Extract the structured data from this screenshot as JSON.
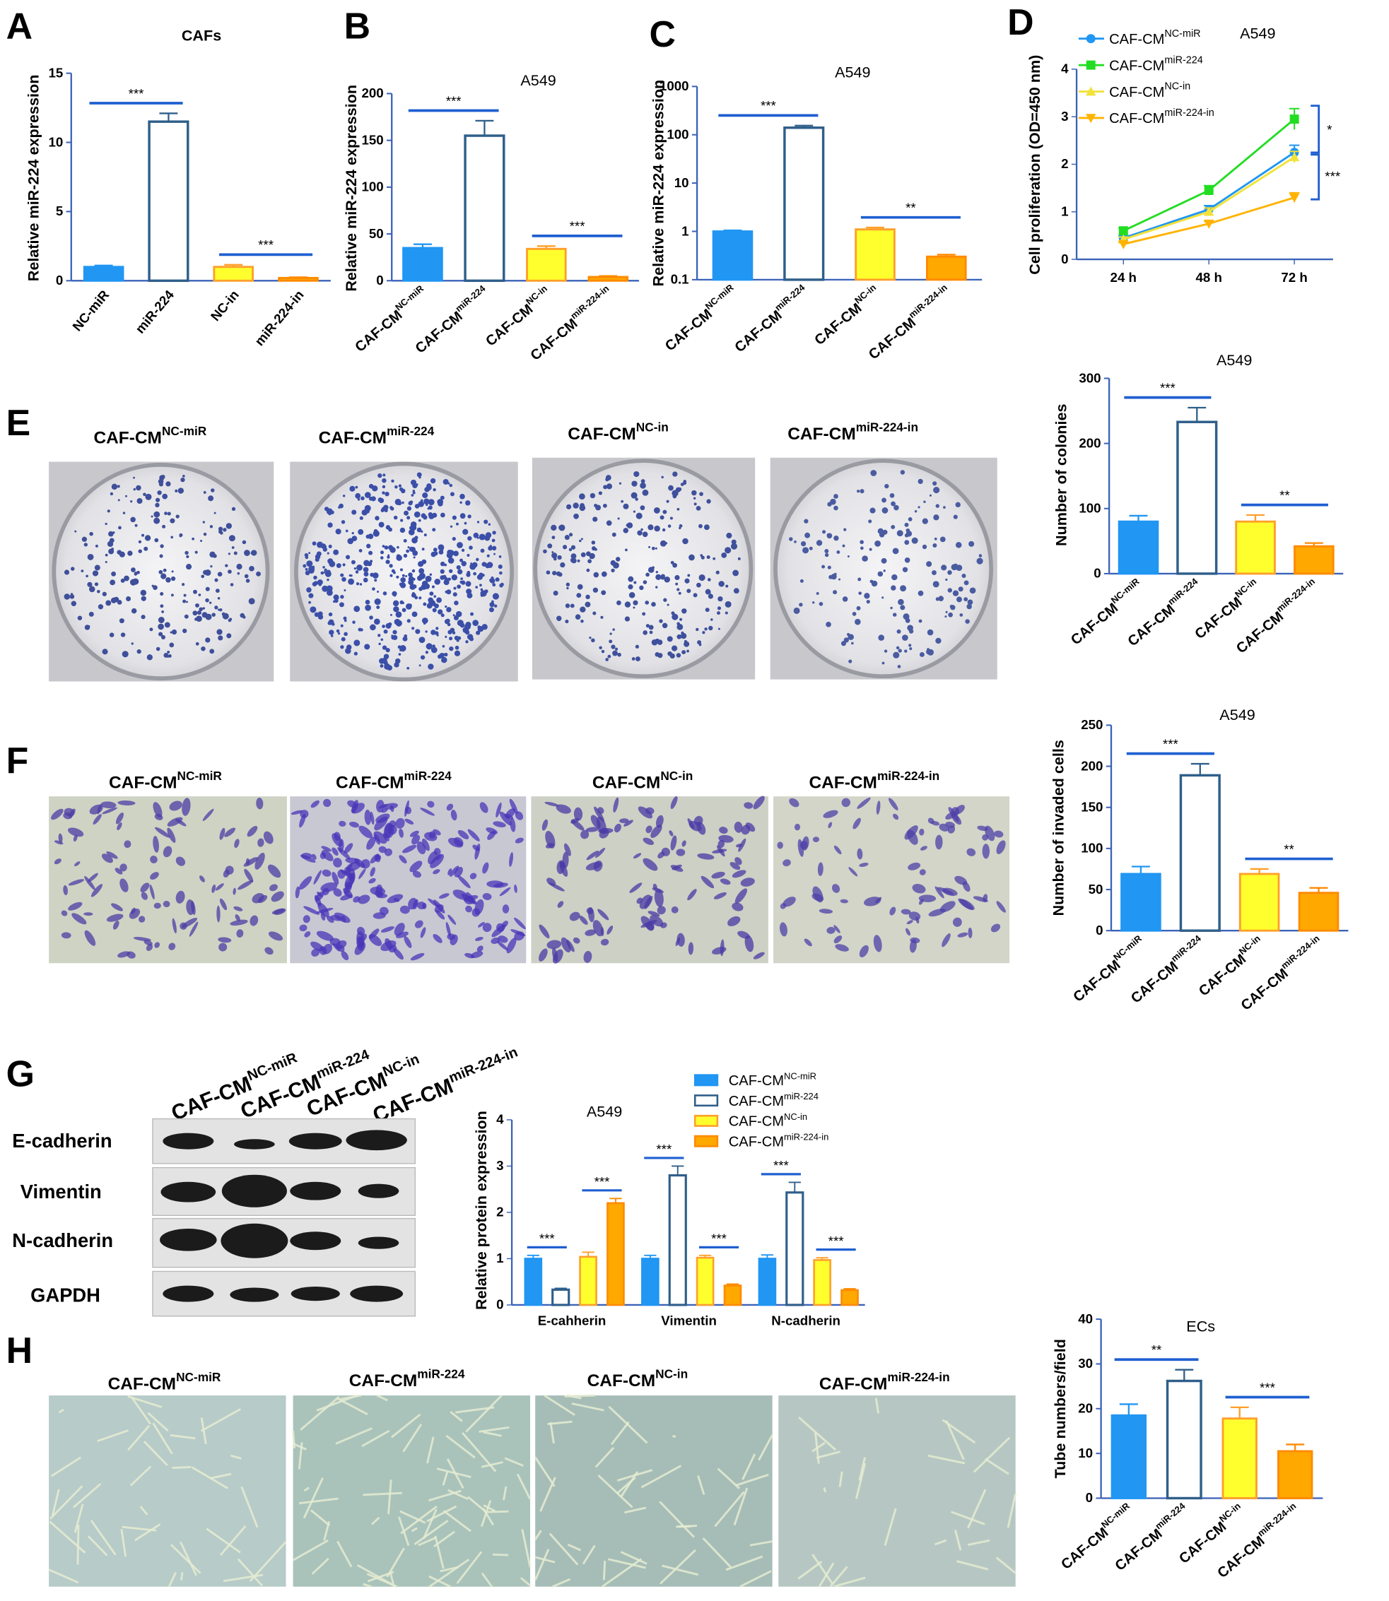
{
  "panels": [
    "A",
    "B",
    "C",
    "D",
    "E",
    "F",
    "G",
    "H"
  ],
  "colors": {
    "blue": "#2196f3",
    "white": "#ffffff",
    "yellow": "#ffff2e",
    "orange": "#ffa800",
    "blue_edge": "#2196f3",
    "white_edge": "#2f5f8a",
    "yellow_edge": "#ff9f2a",
    "orange_edge": "#ff8a00",
    "green": "#22dd22",
    "sig_line": "#1f5fd1"
  },
  "groups": {
    "short": [
      "NC-miR",
      "miR-224",
      "NC-in",
      "miR-224-in"
    ],
    "base": "CAF-CM",
    "sups": [
      "NC-miR",
      "miR-224",
      "NC-in",
      "miR-224-in"
    ]
  },
  "image_captions": {
    "E": [
      "CAF-CM",
      "NC-miR",
      "CAF-CM",
      "miR-224",
      "CAF-CM",
      "NC-in",
      "CAF-CM",
      "miR-224-in"
    ],
    "F": [
      "CAF-CM",
      "NC-miR",
      "CAF-CM",
      "miR-224",
      "CAF-CM",
      "NC-in",
      "CAF-CM",
      "miR-224-in"
    ],
    "H": [
      "CAF-CM",
      "NC-miR",
      "CAF-CM",
      "miR-224",
      "CAF-CM",
      "NC-in",
      "CAF-CM",
      "miR-224-in"
    ]
  },
  "western": {
    "lanes": [
      "CAF-CM",
      "NC-miR",
      "CAF-CM",
      "miR-224",
      "CAF-CM",
      "NC-in",
      "CAF-CM",
      "miR-224-in"
    ],
    "proteins": [
      "E-cadherin",
      "Vimentin",
      "N-cadherin",
      "GAPDH"
    ]
  },
  "chart_data": [
    {
      "id": "A",
      "type": "bar",
      "title": "CAFs",
      "ylabel": "Relative miR-224 expression",
      "ylim": [
        0,
        15
      ],
      "yticks": [
        0,
        5,
        10,
        15
      ],
      "categories": [
        "NC-miR",
        "miR-224",
        "NC-in",
        "miR-224-in"
      ],
      "values": [
        1.0,
        11.5,
        1.0,
        0.2
      ],
      "errors": [
        0.1,
        0.6,
        0.15,
        0.05
      ],
      "significance": [
        {
          "between": [
            0,
            1
          ],
          "label": "***"
        },
        {
          "between": [
            2,
            3
          ],
          "label": "***"
        }
      ]
    },
    {
      "id": "B",
      "type": "bar",
      "title": "A549",
      "ylabel": "Relative miR-224 expression",
      "ylim": [
        0,
        200
      ],
      "yticks": [
        0,
        50,
        100,
        150,
        200
      ],
      "categories": [
        "CAF-CM NC-miR",
        "CAF-CM miR-224",
        "CAF-CM NC-in",
        "CAF-CM miR-224-in"
      ],
      "values": [
        35,
        155,
        34,
        4
      ],
      "errors": [
        4,
        16,
        3,
        1
      ],
      "significance": [
        {
          "between": [
            0,
            1
          ],
          "label": "***"
        },
        {
          "between": [
            2,
            3
          ],
          "label": "***"
        }
      ]
    },
    {
      "id": "C",
      "type": "bar",
      "scale": "log",
      "title": "A549",
      "ylabel": "Relative miR-224 expression",
      "ylim": [
        0.1,
        1000
      ],
      "yticks": [
        "0.1",
        "1",
        "10",
        "100",
        "1000"
      ],
      "categories": [
        "CAF-CM NC-miR",
        "CAF-CM miR-224",
        "CAF-CM NC-in",
        "CAF-CM miR-224-in"
      ],
      "values": [
        1.0,
        140,
        1.1,
        0.3
      ],
      "errors": [
        0.05,
        15,
        0.1,
        0.03
      ],
      "significance": [
        {
          "between": [
            0,
            1
          ],
          "label": "***"
        },
        {
          "between": [
            2,
            3
          ],
          "label": "**"
        }
      ]
    },
    {
      "id": "D",
      "type": "line",
      "title": "A549",
      "ylabel": "Cell proliferation (OD=450 nm)",
      "ylim": [
        0,
        4
      ],
      "yticks": [
        0,
        1,
        2,
        3,
        4
      ],
      "x": [
        "24 h",
        "48 h",
        "72 h"
      ],
      "series": [
        {
          "name": "CAF-CM NC-miR",
          "base": "CAF-CM",
          "sup": "NC-miR",
          "values": [
            0.45,
            1.05,
            2.25
          ],
          "errors": [
            0.05,
            0.08,
            0.15
          ],
          "marker": "circle"
        },
        {
          "name": "CAF-CM miR-224",
          "base": "CAF-CM",
          "sup": "miR-224",
          "values": [
            0.6,
            1.45,
            2.95
          ],
          "errors": [
            0.06,
            0.1,
            0.22
          ],
          "marker": "square"
        },
        {
          "name": "CAF-CM NC-in",
          "base": "CAF-CM",
          "sup": "NC-in",
          "values": [
            0.42,
            1.0,
            2.15
          ],
          "errors": [
            0.05,
            0.08,
            0.12
          ],
          "marker": "triangle-up"
        },
        {
          "name": "CAF-CM miR-224-in",
          "base": "CAF-CM",
          "sup": "miR-224-in",
          "values": [
            0.32,
            0.75,
            1.3
          ],
          "errors": [
            0.04,
            0.05,
            0.1
          ],
          "marker": "triangle-down"
        }
      ],
      "significance": [
        {
          "label": "*"
        },
        {
          "label": "***"
        }
      ]
    },
    {
      "id": "E",
      "type": "bar",
      "title": "A549",
      "ylabel": "Number of colonies",
      "ylim": [
        0,
        300
      ],
      "yticks": [
        0,
        100,
        200,
        300
      ],
      "categories": [
        "CAF-CM NC-miR",
        "CAF-CM miR-224",
        "CAF-CM NC-in",
        "CAF-CM miR-224-in"
      ],
      "values": [
        80,
        233,
        80,
        42
      ],
      "errors": [
        9,
        22,
        10,
        5
      ],
      "significance": [
        {
          "between": [
            0,
            1
          ],
          "label": "***"
        },
        {
          "between": [
            2,
            3
          ],
          "label": "**"
        }
      ]
    },
    {
      "id": "F",
      "type": "bar",
      "title": "A549",
      "ylabel": "Number of invaded cells",
      "ylim": [
        0,
        250
      ],
      "yticks": [
        0,
        50,
        100,
        150,
        200,
        250
      ],
      "categories": [
        "CAF-CM NC-miR",
        "CAF-CM miR-224",
        "CAF-CM NC-in",
        "CAF-CM miR-224-in"
      ],
      "values": [
        69,
        189,
        69,
        46
      ],
      "errors": [
        9,
        14,
        6,
        6
      ],
      "significance": [
        {
          "between": [
            0,
            1
          ],
          "label": "***"
        },
        {
          "between": [
            2,
            3
          ],
          "label": "**"
        }
      ]
    },
    {
      "id": "G",
      "type": "bar",
      "title": "A549",
      "ylabel": "Relative protein expression",
      "ylim": [
        0,
        4
      ],
      "yticks": [
        0,
        1,
        2,
        3,
        4
      ],
      "categories": [
        "E-cahherin",
        "Vimentin",
        "N-cadherin"
      ],
      "series": [
        {
          "name": "CAF-CM NC-miR",
          "base": "CAF-CM",
          "sup": "NC-miR",
          "values": [
            1.0,
            1.0,
            1.0
          ],
          "errors": [
            0.07,
            0.07,
            0.08
          ]
        },
        {
          "name": "CAF-CM miR-224",
          "base": "CAF-CM",
          "sup": "miR-224",
          "values": [
            0.33,
            2.8,
            2.43
          ],
          "errors": [
            0.03,
            0.2,
            0.22
          ]
        },
        {
          "name": "CAF-CM NC-in",
          "base": "CAF-CM",
          "sup": "NC-in",
          "values": [
            1.04,
            1.02,
            0.97
          ],
          "errors": [
            0.1,
            0.05,
            0.05
          ]
        },
        {
          "name": "CAF-CM miR-224-in",
          "base": "CAF-CM",
          "sup": "miR-224-in",
          "values": [
            2.2,
            0.42,
            0.32
          ],
          "errors": [
            0.1,
            0.03,
            0.03
          ]
        }
      ],
      "significance_label": "***"
    },
    {
      "id": "H",
      "type": "bar",
      "title": "ECs",
      "ylabel": "Tube numbers/field",
      "ylim": [
        0,
        40
      ],
      "yticks": [
        0,
        10,
        20,
        30,
        40
      ],
      "categories": [
        "CAF-CM NC-miR",
        "CAF-CM miR-224",
        "CAF-CM NC-in",
        "CAF-CM miR-224-in"
      ],
      "values": [
        18.5,
        26.2,
        17.8,
        10.5
      ],
      "errors": [
        2.5,
        2.5,
        2.5,
        1.5
      ],
      "significance": [
        {
          "between": [
            0,
            1
          ],
          "label": "**"
        },
        {
          "between": [
            2,
            3
          ],
          "label": "***"
        }
      ]
    }
  ]
}
